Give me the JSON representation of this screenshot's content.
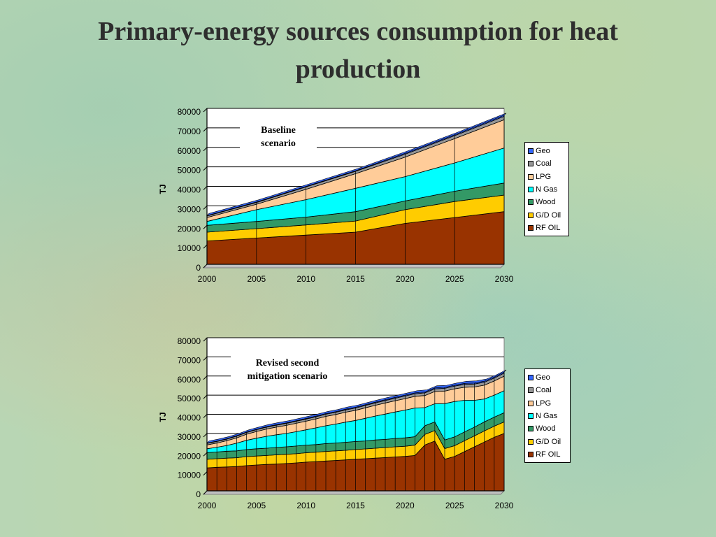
{
  "slide": {
    "title": "Primary-energy sources consumption for heat production"
  },
  "chart_data": [
    {
      "type": "area",
      "stacked": true,
      "annotation": "Baseline scenario",
      "xlabel": "",
      "ylabel": "TJ",
      "xlim": [
        2000,
        2030
      ],
      "ylim": [
        0,
        80000
      ],
      "x_ticks": [
        2000,
        2005,
        2010,
        2015,
        2020,
        2025,
        2030
      ],
      "y_ticks": [
        0,
        10000,
        20000,
        30000,
        40000,
        50000,
        60000,
        70000,
        80000
      ],
      "grid": "horizontal",
      "legend_position": "right",
      "x": [
        2000,
        2005,
        2010,
        2015,
        2020,
        2025,
        2030
      ],
      "series": [
        {
          "name": "RF OIL",
          "color": "#993300",
          "values": [
            12000,
            13500,
            15000,
            16500,
            21000,
            24000,
            27000
          ]
        },
        {
          "name": "G/D Oil",
          "color": "#ffcc00",
          "values": [
            4500,
            4800,
            5200,
            5700,
            7000,
            8200,
            8500
          ]
        },
        {
          "name": "Wood",
          "color": "#339966",
          "values": [
            3500,
            3700,
            4000,
            4800,
            4500,
            5300,
            6200
          ]
        },
        {
          "name": "N Gas",
          "color": "#00ffff",
          "values": [
            2000,
            6000,
            9000,
            12000,
            12500,
            14500,
            18000
          ]
        },
        {
          "name": "LPG",
          "color": "#ffcc99",
          "values": [
            2000,
            2800,
            5300,
            7500,
            10000,
            12500,
            14500
          ]
        },
        {
          "name": "Coal",
          "color": "#969696",
          "values": [
            800,
            900,
            1200,
            1200,
            1500,
            1500,
            1700
          ]
        },
        {
          "name": "Geo",
          "color": "#3366ff",
          "values": [
            200,
            300,
            300,
            300,
            500,
            500,
            600
          ]
        }
      ]
    },
    {
      "type": "area",
      "stacked": true,
      "annotation": "Revised second mitigation scenario",
      "xlabel": "",
      "ylabel": "TJ",
      "xlim": [
        2000,
        2030
      ],
      "ylim": [
        0,
        80000
      ],
      "x_ticks": [
        2000,
        2005,
        2010,
        2015,
        2020,
        2025,
        2030
      ],
      "y_ticks": [
        0,
        10000,
        20000,
        30000,
        40000,
        50000,
        60000,
        70000,
        80000
      ],
      "grid": "horizontal",
      "legend_position": "right",
      "x": [
        2000,
        2001,
        2002,
        2003,
        2004,
        2005,
        2006,
        2007,
        2008,
        2009,
        2010,
        2011,
        2012,
        2013,
        2014,
        2015,
        2016,
        2017,
        2018,
        2019,
        2020,
        2021,
        2022,
        2023,
        2024,
        2025,
        2026,
        2027,
        2028,
        2029,
        2030
      ],
      "series": [
        {
          "name": "RF OIL",
          "color": "#993300",
          "values": [
            12000,
            12300,
            12500,
            12700,
            13200,
            13500,
            13800,
            14000,
            14300,
            14600,
            15000,
            15300,
            15600,
            15900,
            16200,
            16500,
            16800,
            17100,
            17400,
            17700,
            18000,
            18500,
            24000,
            26000,
            16500,
            18000,
            20500,
            23000,
            25500,
            28000,
            30000
          ]
        },
        {
          "name": "G/D Oil",
          "color": "#ffcc00",
          "values": [
            4500,
            4500,
            4600,
            4600,
            4700,
            4700,
            4700,
            4800,
            4800,
            4800,
            4900,
            4900,
            5000,
            5000,
            5000,
            5100,
            5100,
            5200,
            5200,
            5300,
            5300,
            5400,
            5500,
            5500,
            5600,
            5600,
            5700,
            5700,
            5800,
            5800,
            6000
          ]
        },
        {
          "name": "Wood",
          "color": "#339966",
          "values": [
            3500,
            3500,
            3600,
            3600,
            3700,
            3800,
            3800,
            3900,
            3900,
            4000,
            4000,
            4000,
            4100,
            4100,
            4200,
            4200,
            4200,
            4300,
            4300,
            4400,
            4400,
            4400,
            4500,
            4500,
            4500,
            4600,
            4600,
            4600,
            4700,
            4700,
            4800
          ]
        },
        {
          "name": "N Gas",
          "color": "#00ffff",
          "values": [
            2000,
            2500,
            3000,
            4000,
            4800,
            5500,
            6200,
            6600,
            7000,
            7500,
            8000,
            8700,
            9300,
            9900,
            10500,
            11000,
            11800,
            12500,
            13200,
            13800,
            14500,
            15000,
            9500,
            9500,
            19000,
            18500,
            16500,
            14000,
            12000,
            11500,
            11500
          ]
        },
        {
          "name": "LPG",
          "color": "#ffcc99",
          "values": [
            2000,
            2200,
            2500,
            2800,
            3200,
            3500,
            3800,
            4000,
            4200,
            4400,
            4500,
            4700,
            4900,
            5000,
            5200,
            5300,
            5500,
            5600,
            5800,
            5900,
            6000,
            6100,
            6300,
            6400,
            6500,
            6600,
            6800,
            7000,
            7200,
            7400,
            7600
          ]
        },
        {
          "name": "Coal",
          "color": "#969696",
          "values": [
            800,
            800,
            850,
            900,
            900,
            950,
            950,
            1000,
            1000,
            1050,
            1100,
            1100,
            1150,
            1150,
            1200,
            1200,
            1250,
            1250,
            1300,
            1300,
            1350,
            1350,
            1400,
            1400,
            1450,
            1450,
            1500,
            1500,
            1550,
            1550,
            1600
          ]
        },
        {
          "name": "Geo",
          "color": "#3366ff",
          "values": [
            200,
            200,
            200,
            250,
            250,
            250,
            300,
            300,
            300,
            300,
            350,
            350,
            350,
            350,
            400,
            400,
            400,
            400,
            450,
            450,
            450,
            450,
            500,
            500,
            500,
            500,
            550,
            550,
            550,
            550,
            600
          ]
        }
      ]
    }
  ]
}
